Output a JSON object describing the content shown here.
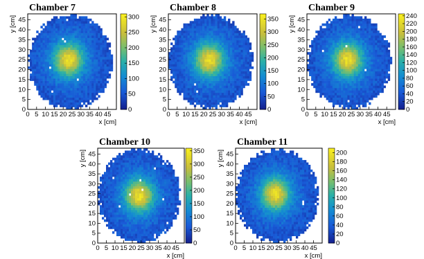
{
  "chart_data": [
    {
      "type": "heatmap",
      "title": "Chamber 7",
      "xlabel": "x [cm]",
      "ylabel": "y [cm]",
      "xlim": [
        0,
        50
      ],
      "ylim": [
        0,
        48
      ],
      "x_ticks": [
        "0",
        "5",
        "10",
        "15",
        "20",
        "25",
        "30",
        "35",
        "40",
        "45"
      ],
      "y_ticks": [
        "0",
        "5",
        "10",
        "15",
        "20",
        "25",
        "30",
        "35",
        "40",
        "45"
      ],
      "colorbar_range": [
        0,
        310
      ],
      "colorbar_ticks": [
        "0",
        "50",
        "100",
        "150",
        "200",
        "250",
        "300"
      ],
      "hotspot": {
        "x": 23,
        "y": 25,
        "peak": 300
      },
      "grid": false,
      "legend": "none"
    },
    {
      "type": "heatmap",
      "title": "Chamber 8",
      "xlabel": "x [cm]",
      "ylabel": "y [cm]",
      "xlim": [
        0,
        50
      ],
      "ylim": [
        0,
        48
      ],
      "x_ticks": [
        "0",
        "5",
        "10",
        "15",
        "20",
        "25",
        "30",
        "35",
        "40",
        "45"
      ],
      "y_ticks": [
        "0",
        "5",
        "10",
        "15",
        "20",
        "25",
        "30",
        "35",
        "40",
        "45"
      ],
      "colorbar_range": [
        0,
        370
      ],
      "colorbar_ticks": [
        "0",
        "50",
        "100",
        "150",
        "200",
        "250",
        "300",
        "350"
      ],
      "hotspot": {
        "x": 23,
        "y": 25,
        "peak": 350
      },
      "grid": false,
      "legend": "none"
    },
    {
      "type": "heatmap",
      "title": "Chamber 9",
      "xlabel": "x [cm]",
      "ylabel": "y [cm]",
      "xlim": [
        0,
        50
      ],
      "ylim": [
        0,
        48
      ],
      "x_ticks": [
        "0",
        "5",
        "10",
        "15",
        "20",
        "25",
        "30",
        "35",
        "40",
        "45"
      ],
      "y_ticks": [
        "0",
        "5",
        "10",
        "15",
        "20",
        "25",
        "30",
        "35",
        "40",
        "45"
      ],
      "colorbar_range": [
        0,
        245
      ],
      "colorbar_ticks": [
        "0",
        "20",
        "40",
        "60",
        "80",
        "100",
        "120",
        "140",
        "160",
        "180",
        "200",
        "220",
        "240"
      ],
      "hotspot": {
        "x": 23,
        "y": 25,
        "peak": 240
      },
      "grid": false,
      "legend": "none"
    },
    {
      "type": "heatmap",
      "title": "Chamber 10",
      "xlabel": "x [cm]",
      "ylabel": "y [cm]",
      "xlim": [
        0,
        50
      ],
      "ylim": [
        0,
        48
      ],
      "x_ticks": [
        "0",
        "5",
        "10",
        "15",
        "20",
        "25",
        "30",
        "35",
        "40",
        "45"
      ],
      "y_ticks": [
        "0",
        "5",
        "10",
        "15",
        "20",
        "25",
        "30",
        "35",
        "40",
        "45"
      ],
      "colorbar_range": [
        0,
        360
      ],
      "colorbar_ticks": [
        "0",
        "50",
        "100",
        "150",
        "200",
        "250",
        "300",
        "350"
      ],
      "hotspot": {
        "x": 24,
        "y": 24,
        "peak": 350
      },
      "grid": false,
      "legend": "none"
    },
    {
      "type": "heatmap",
      "title": "Chamber 11",
      "xlabel": "x [cm]",
      "ylabel": "y [cm]",
      "xlim": [
        0,
        50
      ],
      "ylim": [
        0,
        48
      ],
      "x_ticks": [
        "0",
        "5",
        "10",
        "15",
        "20",
        "25",
        "30",
        "35",
        "40",
        "45"
      ],
      "y_ticks": [
        "0",
        "5",
        "10",
        "15",
        "20",
        "25",
        "30",
        "35",
        "40",
        "45"
      ],
      "colorbar_range": [
        0,
        210
      ],
      "colorbar_ticks": [
        "0",
        "20",
        "40",
        "60",
        "80",
        "100",
        "120",
        "140",
        "160",
        "180",
        "200"
      ],
      "hotspot": {
        "x": 23,
        "y": 25,
        "peak": 200
      },
      "grid": false,
      "legend": "none"
    }
  ]
}
